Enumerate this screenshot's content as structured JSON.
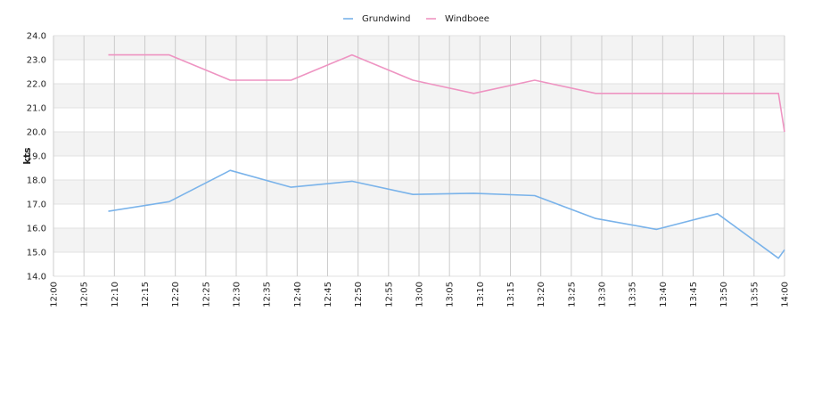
{
  "chart_data": {
    "type": "line",
    "title": "",
    "xlabel": "",
    "ylabel": "kts",
    "xlim": [
      "12:00",
      "14:00"
    ],
    "ylim": [
      14.0,
      24.0
    ],
    "grid": true,
    "legend_position": "top-center",
    "x_ticks": [
      "12:00",
      "12:05",
      "12:10",
      "12:15",
      "12:20",
      "12:25",
      "12:30",
      "12:35",
      "12:40",
      "12:45",
      "12:50",
      "12:55",
      "13:00",
      "13:05",
      "13:10",
      "13:15",
      "13:20",
      "13:25",
      "13:30",
      "13:35",
      "13:40",
      "13:45",
      "13:50",
      "13:55",
      "14:00"
    ],
    "y_ticks": [
      "14.0",
      "15.0",
      "16.0",
      "17.0",
      "18.0",
      "19.0",
      "20.0",
      "21.0",
      "22.0",
      "23.0",
      "24.0"
    ],
    "series": [
      {
        "name": "Grundwind",
        "color": "#7ab3ea",
        "x": [
          "12:09",
          "12:19",
          "12:29",
          "12:39",
          "12:49",
          "12:59",
          "13:09",
          "13:19",
          "13:29",
          "13:39",
          "13:49",
          "13:59",
          "14:00"
        ],
        "values": [
          16.7,
          17.1,
          18.4,
          17.7,
          17.95,
          17.4,
          17.45,
          17.35,
          16.4,
          15.95,
          16.6,
          14.75,
          15.1
        ]
      },
      {
        "name": "Windboee",
        "color": "#ee94c2",
        "x": [
          "12:09",
          "12:19",
          "12:29",
          "12:39",
          "12:49",
          "12:59",
          "13:09",
          "13:19",
          "13:29",
          "13:39",
          "13:49",
          "13:59",
          "14:00"
        ],
        "values": [
          23.2,
          23.2,
          22.15,
          22.15,
          23.2,
          22.15,
          21.6,
          22.15,
          21.6,
          21.6,
          21.6,
          21.6,
          20.0
        ]
      }
    ]
  }
}
